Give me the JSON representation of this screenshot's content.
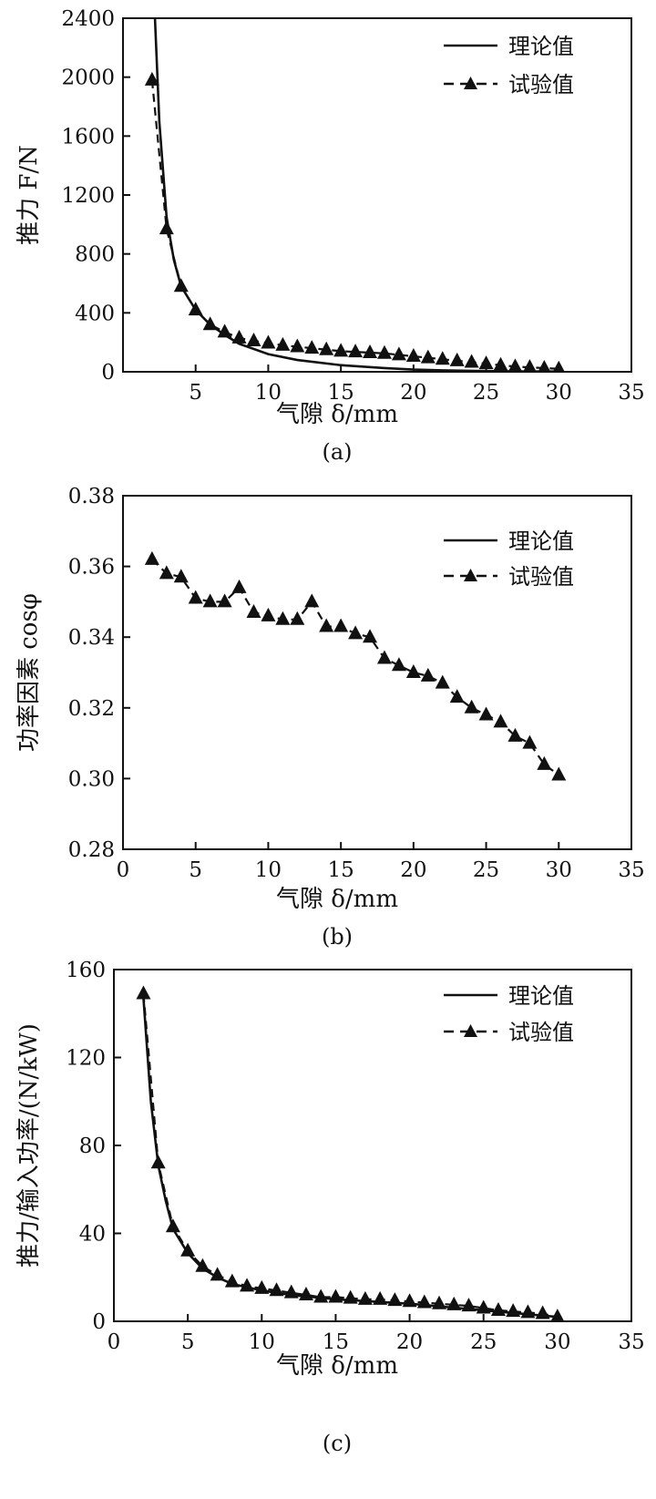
{
  "colors": {
    "ink": "#111111",
    "background": "#ffffff"
  },
  "chart_data": [
    {
      "type": "line",
      "caption": "(a)",
      "xlabel": "气隙 δ/mm",
      "ylabel": "推力 F/N",
      "xlim": [
        0,
        35
      ],
      "ylim": [
        0,
        2400
      ],
      "xticks": [
        5,
        10,
        15,
        20,
        25,
        30,
        35
      ],
      "yticks": [
        0,
        400,
        800,
        1200,
        1600,
        2000,
        2400
      ],
      "grid": false,
      "legend_position": "top-right",
      "series": [
        {
          "name": "理论值",
          "style": "solid",
          "x": [
            2.2,
            2.5,
            3,
            3.5,
            4,
            5,
            6,
            7,
            8,
            10,
            12,
            15,
            18,
            20,
            22,
            25,
            27,
            30
          ],
          "y": [
            2400,
            1700,
            1050,
            760,
            580,
            420,
            320,
            250,
            190,
            120,
            80,
            45,
            25,
            15,
            10,
            5,
            3,
            2
          ]
        },
        {
          "name": "试验值",
          "style": "dashed-triangle",
          "x": [
            2,
            3,
            4,
            5,
            6,
            7,
            8,
            9,
            10,
            11,
            12,
            13,
            14,
            15,
            16,
            17,
            18,
            19,
            20,
            21,
            22,
            23,
            24,
            25,
            26,
            27,
            28,
            29,
            30
          ],
          "y": [
            1980,
            970,
            580,
            420,
            320,
            270,
            230,
            210,
            195,
            180,
            170,
            160,
            150,
            140,
            135,
            130,
            125,
            115,
            105,
            95,
            85,
            75,
            65,
            55,
            45,
            35,
            30,
            25,
            20
          ]
        }
      ]
    },
    {
      "type": "line",
      "caption": "(b)",
      "xlabel": "气隙 δ/mm",
      "ylabel": "功率因素 cosφ",
      "xlim": [
        0,
        35
      ],
      "ylim": [
        0.28,
        0.38
      ],
      "xticks": [
        0,
        5,
        10,
        15,
        20,
        25,
        30,
        35
      ],
      "yticks": [
        0.28,
        0.3,
        0.32,
        0.34,
        0.36,
        0.38
      ],
      "grid": false,
      "legend_position": "top-right",
      "series": [
        {
          "name": "理论值",
          "style": "solid",
          "x": [],
          "y": []
        },
        {
          "name": "试验值",
          "style": "dashed-triangle",
          "x": [
            2,
            3,
            4,
            5,
            6,
            7,
            8,
            9,
            10,
            11,
            12,
            13,
            14,
            15,
            16,
            17,
            18,
            19,
            20,
            21,
            22,
            23,
            24,
            25,
            26,
            27,
            28,
            29,
            30
          ],
          "y": [
            0.362,
            0.358,
            0.357,
            0.351,
            0.35,
            0.35,
            0.354,
            0.347,
            0.346,
            0.345,
            0.345,
            0.35,
            0.343,
            0.343,
            0.341,
            0.34,
            0.334,
            0.332,
            0.33,
            0.329,
            0.327,
            0.323,
            0.32,
            0.318,
            0.316,
            0.312,
            0.31,
            0.304,
            0.301
          ]
        }
      ]
    },
    {
      "type": "line",
      "caption": "(c)",
      "xlabel": "气隙 δ/mm",
      "ylabel": "推力/输入功率/(N/kW)",
      "xlim": [
        0,
        35
      ],
      "ylim": [
        0,
        160
      ],
      "xticks": [
        0,
        5,
        10,
        15,
        20,
        25,
        30,
        35
      ],
      "yticks": [
        0,
        40,
        80,
        120,
        160
      ],
      "grid": false,
      "legend_position": "top-right",
      "series": [
        {
          "name": "理论值",
          "style": "solid",
          "x": [
            2,
            2.5,
            3,
            3.5,
            4,
            5,
            6,
            7,
            8,
            10,
            12,
            15,
            20,
            25,
            30
          ],
          "y": [
            147,
            100,
            71,
            55,
            42,
            31,
            24,
            20,
            17,
            14,
            12,
            10,
            8,
            5,
            2
          ]
        },
        {
          "name": "试验值",
          "style": "dashed-triangle",
          "x": [
            2,
            3,
            4,
            5,
            6,
            7,
            8,
            9,
            10,
            11,
            12,
            13,
            14,
            15,
            16,
            17,
            18,
            19,
            20,
            21,
            22,
            23,
            24,
            25,
            26,
            27,
            28,
            29,
            30
          ],
          "y": [
            149,
            72,
            43,
            32,
            25,
            21,
            18,
            16,
            15,
            14,
            13,
            12,
            11,
            11,
            10.5,
            10,
            10,
            9.5,
            9,
            8.5,
            8,
            7.5,
            7,
            6,
            5,
            4.5,
            4,
            3.5,
            2
          ]
        }
      ]
    }
  ]
}
